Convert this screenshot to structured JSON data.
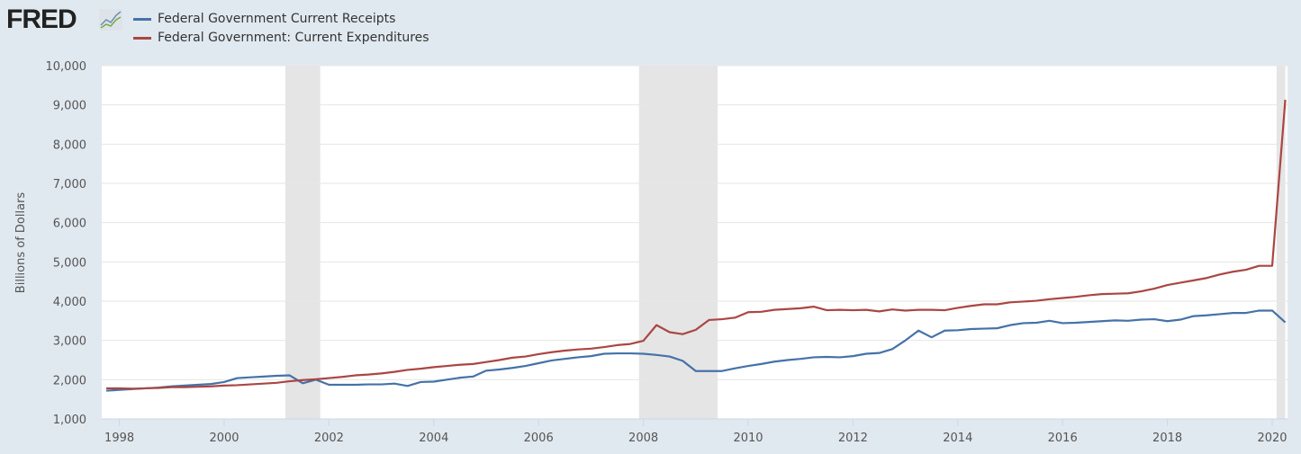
{
  "brand": {
    "logo": "FRED"
  },
  "chart_data": {
    "type": "line",
    "title": "",
    "xlabel": "",
    "ylabel": "Billions of Dollars",
    "ylim": [
      1000,
      10000
    ],
    "yticks": [
      "1,000",
      "2,000",
      "3,000",
      "4,000",
      "5,000",
      "6,000",
      "7,000",
      "8,000",
      "9,000",
      "10,000"
    ],
    "ytick_values": [
      1000,
      2000,
      3000,
      4000,
      5000,
      6000,
      7000,
      8000,
      9000,
      10000
    ],
    "xticks": [
      "1998",
      "2000",
      "2002",
      "2004",
      "2006",
      "2008",
      "2010",
      "2012",
      "2014",
      "2016",
      "2018",
      "2020"
    ],
    "grid": "horizontal",
    "legend": "top-left",
    "frequency": "quarterly",
    "start": "1997-Q4",
    "recessions": [
      [
        "2001-03",
        "2001-11"
      ],
      [
        "2007-12",
        "2009-06"
      ],
      [
        "2020-02",
        "2020-04"
      ]
    ],
    "series": [
      {
        "name": "Federal Government Current Receipts",
        "color": "#4572a7",
        "values": [
          1720,
          1740,
          1760,
          1780,
          1800,
          1830,
          1850,
          1870,
          1890,
          1940,
          2040,
          2060,
          2080,
          2100,
          2110,
          1910,
          2000,
          1870,
          1870,
          1870,
          1880,
          1880,
          1900,
          1840,
          1940,
          1950,
          2000,
          2050,
          2080,
          2230,
          2260,
          2300,
          2350,
          2420,
          2490,
          2530,
          2570,
          2600,
          2660,
          2670,
          2670,
          2660,
          2630,
          2590,
          2480,
          2220,
          2220,
          2220,
          2290,
          2350,
          2400,
          2460,
          2500,
          2530,
          2570,
          2580,
          2570,
          2600,
          2660,
          2680,
          2780,
          3000,
          3250,
          3080,
          3250,
          3260,
          3290,
          3300,
          3310,
          3390,
          3440,
          3450,
          3500,
          3440,
          3450,
          3470,
          3490,
          3510,
          3500,
          3530,
          3540,
          3490,
          3530,
          3620,
          3640,
          3670,
          3700,
          3700,
          3760,
          3760,
          3460
        ]
      },
      {
        "name": "Federal Government: Current Expenditures",
        "color": "#aa4643",
        "values": [
          1780,
          1780,
          1770,
          1780,
          1790,
          1810,
          1810,
          1820,
          1830,
          1850,
          1860,
          1880,
          1900,
          1920,
          1960,
          1990,
          2010,
          2040,
          2070,
          2110,
          2130,
          2160,
          2200,
          2250,
          2280,
          2320,
          2350,
          2380,
          2400,
          2450,
          2500,
          2560,
          2590,
          2650,
          2700,
          2740,
          2770,
          2790,
          2830,
          2880,
          2910,
          2990,
          3390,
          3210,
          3160,
          3270,
          3520,
          3540,
          3580,
          3720,
          3730,
          3780,
          3800,
          3820,
          3860,
          3770,
          3780,
          3770,
          3780,
          3740,
          3790,
          3760,
          3780,
          3780,
          3770,
          3830,
          3880,
          3920,
          3920,
          3970,
          3990,
          4010,
          4050,
          4080,
          4110,
          4150,
          4180,
          4190,
          4200,
          4250,
          4320,
          4410,
          4470,
          4530,
          4590,
          4680,
          4750,
          4800,
          4900,
          4900,
          9130
        ]
      }
    ]
  }
}
